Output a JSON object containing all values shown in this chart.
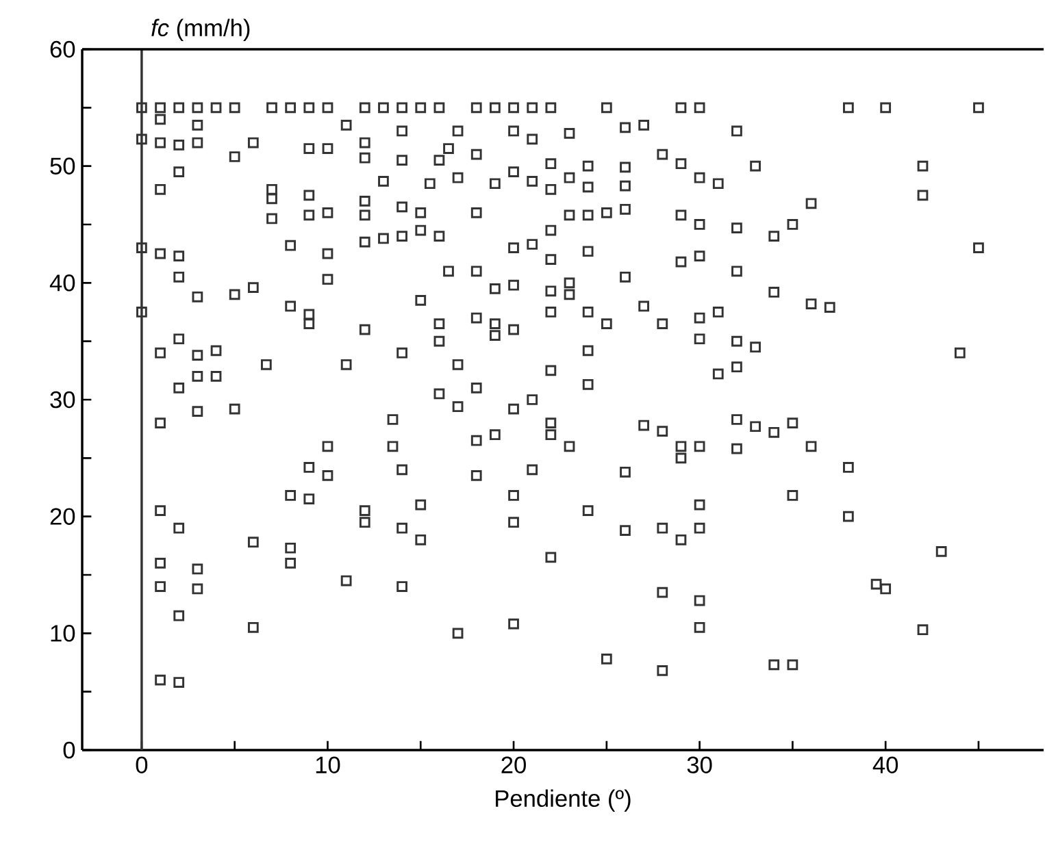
{
  "chart_data": {
    "type": "scatter",
    "xlabel": "Pendiente (º)",
    "ylabel": "*fc*  (mm/h)",
    "xlim": [
      -3.2,
      48.5
    ],
    "ylim": [
      0,
      60
    ],
    "xticks": [
      0,
      {
        "value": 5,
        "label": null
      },
      10,
      {
        "value": 15,
        "label": null
      },
      20,
      {
        "value": 25,
        "label": null
      },
      30,
      {
        "value": 35,
        "label": null
      },
      40,
      {
        "value": 45,
        "label": null
      }
    ],
    "yticks": [
      0,
      {
        "value": 5,
        "label": null
      },
      10,
      {
        "value": 15,
        "label": null
      },
      20,
      {
        "value": 25,
        "label": null
      },
      30,
      {
        "value": 35,
        "label": null
      },
      40,
      {
        "value": 45,
        "label": null
      },
      50,
      {
        "value": 55,
        "label": null
      },
      60
    ],
    "marker": "square",
    "ref_lines": [
      {
        "axis": "x",
        "value": 0,
        "color": "#333333"
      }
    ],
    "series": [
      {
        "color": "#333333",
        "x": [
          0,
          1,
          2,
          3,
          4,
          5,
          7,
          8,
          9,
          10,
          12,
          13,
          14,
          15,
          16,
          18,
          19,
          20,
          21,
          22,
          25,
          29,
          30,
          38,
          40,
          45,
          0,
          0,
          0,
          1,
          1,
          1,
          1,
          1,
          1,
          1,
          1,
          1,
          1,
          2,
          2,
          2,
          2,
          2,
          2,
          2,
          2,
          2,
          3,
          3,
          3,
          3,
          3,
          3,
          3,
          3,
          4,
          4,
          5,
          5,
          5,
          6,
          6,
          6,
          6,
          6.7,
          7,
          7,
          7,
          8,
          8,
          8,
          8,
          8,
          9,
          9,
          9,
          9,
          9,
          9,
          9,
          10,
          10,
          10,
          10,
          10,
          10,
          11,
          11,
          11,
          12,
          12,
          12,
          12,
          12,
          12,
          12,
          12,
          13,
          13,
          13.5,
          13.5,
          14,
          14,
          14,
          14,
          14,
          14,
          14,
          14,
          15,
          15,
          15,
          15,
          15,
          15.5,
          16,
          16,
          16,
          16,
          16,
          16.5,
          16.5,
          17,
          17,
          17,
          17,
          17,
          18,
          18,
          18,
          18,
          18,
          18,
          18,
          19,
          19,
          19,
          19,
          19,
          20,
          20,
          20,
          20,
          20,
          20,
          20,
          20,
          20,
          21,
          21,
          21,
          21,
          21,
          22,
          22,
          22,
          22,
          22,
          22,
          22,
          22,
          22,
          22,
          23,
          23,
          23,
          23,
          23,
          23,
          24,
          24,
          24,
          24,
          24,
          24,
          24,
          24,
          25,
          25,
          25,
          26,
          26,
          26,
          26,
          26,
          26,
          26,
          27,
          27,
          27,
          28,
          28,
          28,
          28,
          28,
          28,
          29,
          29,
          29,
          29,
          29,
          29,
          30,
          30,
          30,
          30,
          30,
          30,
          30,
          30,
          30,
          30,
          31,
          31,
          31,
          32,
          32,
          32,
          32,
          32,
          32,
          32,
          33,
          33,
          33,
          34,
          34,
          34,
          34,
          35,
          35,
          35,
          35,
          36,
          36,
          36,
          37,
          38,
          38,
          39.5,
          40,
          42,
          42,
          42,
          43,
          44,
          45
        ],
        "values": [
          55,
          55,
          55,
          55,
          55,
          55,
          55,
          55,
          55,
          55,
          55,
          55,
          55,
          55,
          55,
          55,
          55,
          55,
          55,
          55,
          55,
          55,
          55,
          55,
          55,
          55,
          52.3,
          43,
          37.5,
          54,
          52,
          48,
          42.5,
          34,
          28,
          20.5,
          16,
          14,
          6,
          51.8,
          49.5,
          42.3,
          40.5,
          35.2,
          31,
          19,
          11.5,
          5.8,
          53.5,
          52,
          38.8,
          33.8,
          32,
          29,
          15.5,
          13.8,
          34.2,
          32,
          50.8,
          39,
          29.2,
          52,
          39.6,
          17.8,
          10.5,
          33,
          48,
          47.2,
          45.5,
          43.2,
          38,
          21.8,
          17.3,
          16,
          51.5,
          47.5,
          45.8,
          37.3,
          36.5,
          24.2,
          21.5,
          51.5,
          46,
          42.5,
          40.3,
          26,
          23.5,
          53.5,
          33,
          14.5,
          52,
          50.7,
          47,
          45.8,
          43.5,
          36,
          20.5,
          19.5,
          48.7,
          43.8,
          28.3,
          26,
          53,
          50.5,
          46.5,
          44,
          34,
          24,
          19,
          14,
          46,
          44.5,
          38.5,
          21,
          18,
          48.5,
          50.5,
          44,
          36.5,
          35,
          30.5,
          51.5,
          41,
          53,
          49,
          33,
          29.4,
          10,
          51,
          46,
          41,
          37,
          31,
          26.5,
          23.5,
          48.5,
          39.5,
          36.5,
          35.5,
          27,
          53,
          49.5,
          43,
          39.8,
          36,
          29.2,
          21.8,
          19.5,
          10.8,
          52.3,
          48.7,
          43.3,
          30,
          24,
          50.2,
          48,
          44.5,
          42,
          39.3,
          37.5,
          32.5,
          28,
          27,
          16.5,
          52.8,
          49,
          45.8,
          40,
          39,
          26,
          50,
          48.2,
          45.8,
          42.7,
          37.5,
          34.2,
          31.3,
          20.5,
          46,
          36.5,
          7.8,
          53.3,
          49.9,
          48.3,
          46.3,
          40.5,
          23.8,
          18.8,
          53.5,
          38,
          27.8,
          51,
          36.5,
          27.3,
          19,
          13.5,
          6.8,
          50.2,
          45.8,
          41.8,
          26,
          25,
          18,
          49,
          45,
          42.3,
          37,
          35.2,
          26,
          21,
          19,
          12.8,
          10.5,
          48.5,
          37.5,
          32.2,
          53,
          44.7,
          41,
          35,
          32.8,
          28.3,
          25.8,
          50,
          34.5,
          27.7,
          44,
          39.2,
          27.2,
          7.3,
          45,
          28,
          21.8,
          7.3,
          46.8,
          38.2,
          26,
          37.9,
          24.2,
          20,
          14.2,
          13.8,
          50,
          47.5,
          10.3,
          17,
          34,
          43
        ]
      }
    ]
  }
}
